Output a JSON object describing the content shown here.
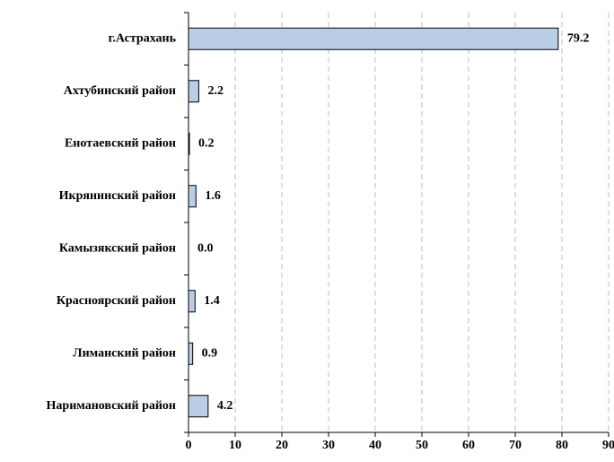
{
  "chart_data": {
    "type": "hbar",
    "categories": [
      "г.Астрахань",
      "Ахтубинский район",
      "Енотаевский район",
      "Икрянинский район",
      "Камызякский район",
      "Красноярский район",
      "Лиманский район",
      "Наримановский район"
    ],
    "values": [
      79.2,
      2.2,
      0.2,
      1.6,
      0.0,
      1.4,
      0.9,
      4.2
    ],
    "value_labels": [
      "79.2",
      "2.2",
      "0.2",
      "1.6",
      "0.0",
      "1.4",
      "0.9",
      "4.2"
    ],
    "color": "#b9cde5",
    "xlim": [
      0,
      90
    ],
    "xticks": [
      0,
      10,
      20,
      30,
      40,
      50,
      60,
      70,
      80,
      90
    ],
    "grid": true
  }
}
